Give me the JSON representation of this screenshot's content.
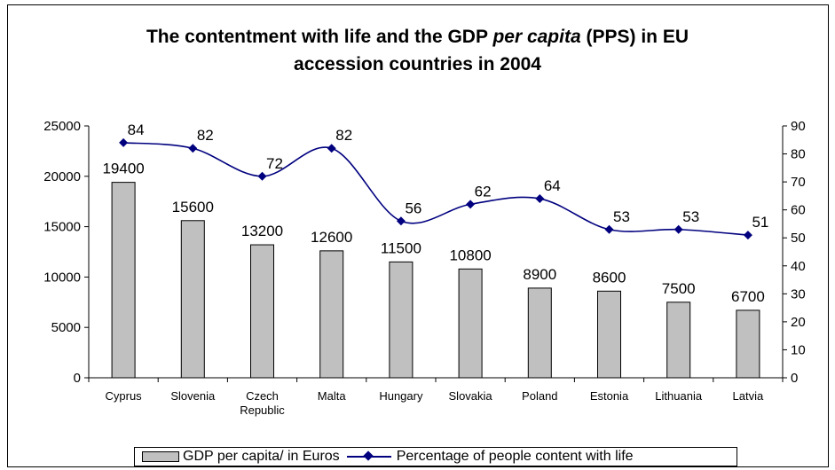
{
  "chart_data": {
    "type": "bar",
    "title_parts": {
      "line1_pre": "The contentment with life and the GDP ",
      "line1_italic": "per capita",
      "line1_post": " (PPS) in EU",
      "line2": "accession countries in 2004"
    },
    "categories": [
      "Cyprus",
      "Slovenia",
      "Czech Republic",
      "Malta",
      "Hungary",
      "Slovakia",
      "Poland",
      "Estonia",
      "Lithuania",
      "Latvia"
    ],
    "category_lines": [
      [
        "Cyprus"
      ],
      [
        "Slovenia"
      ],
      [
        "Czech",
        "Republic"
      ],
      [
        "Malta"
      ],
      [
        "Hungary"
      ],
      [
        "Slovakia"
      ],
      [
        "Poland"
      ],
      [
        "Estonia"
      ],
      [
        "Lithuania"
      ],
      [
        "Latvia"
      ]
    ],
    "series": [
      {
        "name": "GDP per capita/ in Euros",
        "type": "bar",
        "axis": "left",
        "color": "#c0c0c0",
        "values": [
          19400,
          15600,
          13200,
          12600,
          11500,
          10800,
          8900,
          8600,
          7500,
          6700
        ]
      },
      {
        "name": "Percentage of people content with life",
        "type": "line",
        "axis": "right",
        "color": "#00007f",
        "marker": "diamond",
        "values": [
          84,
          82,
          72,
          82,
          56,
          62,
          64,
          53,
          53,
          51
        ]
      }
    ],
    "y_left": {
      "min": 0,
      "max": 25000,
      "ticks": [
        "0",
        "5000",
        "10000",
        "15000",
        "20000",
        "25000"
      ]
    },
    "y_right": {
      "min": 0,
      "max": 90,
      "ticks": [
        "0",
        "10",
        "20",
        "30",
        "40",
        "50",
        "60",
        "70",
        "80",
        "90"
      ]
    },
    "grid": false,
    "legend_position": "bottom"
  }
}
